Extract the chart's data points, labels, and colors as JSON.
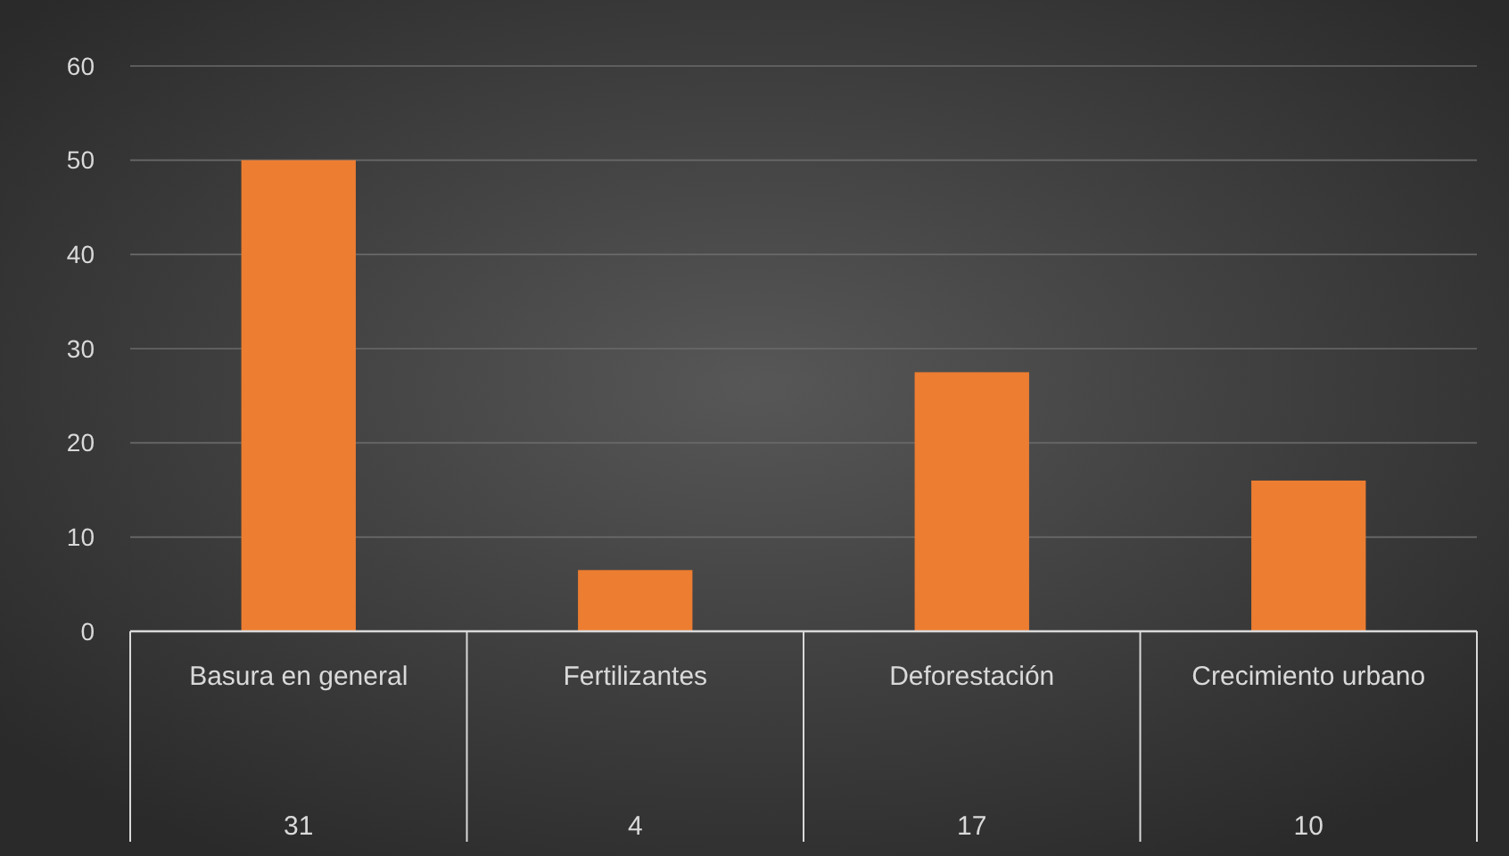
{
  "chart_data": {
    "type": "bar",
    "categories": [
      "Basura en general",
      "Fertilizantes",
      "Deforestación",
      "Crecimiento urbano"
    ],
    "values": [
      50,
      6.5,
      27.5,
      16
    ],
    "color": "#ed7d31",
    "ylim": [
      0,
      60
    ],
    "yticks": [
      0,
      10,
      20,
      30,
      40,
      50,
      60
    ],
    "grid": "y",
    "annotations": [
      "31",
      "4",
      "17",
      "10"
    ]
  }
}
